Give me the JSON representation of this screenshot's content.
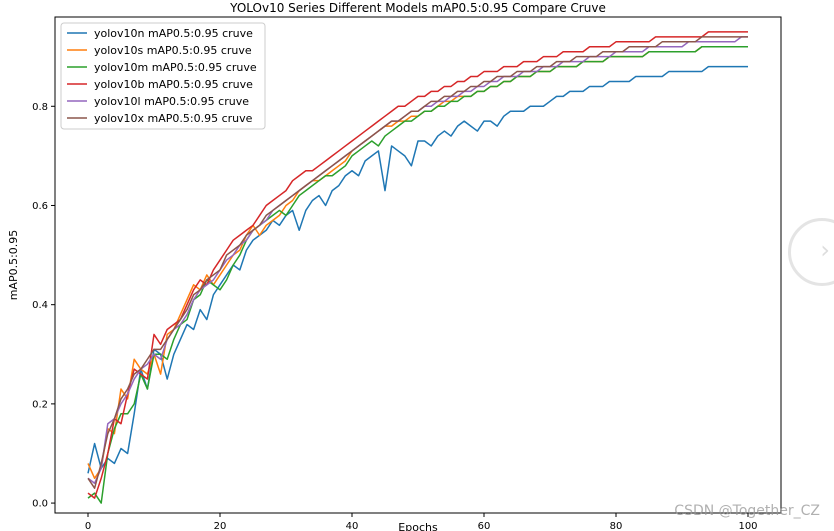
{
  "chart_data": {
    "type": "line",
    "title": "YOLOv10 Series Different Models mAP0.5:0.95 Compare Cruve",
    "xlabel": "Epochs",
    "ylabel": "mAP0.5:0.95",
    "xlim": [
      -5,
      105
    ],
    "ylim": [
      -0.02,
      0.98
    ],
    "xticks": [
      0,
      20,
      40,
      60,
      80,
      100
    ],
    "yticks": [
      0.0,
      0.2,
      0.4,
      0.6,
      0.8
    ],
    "xtick_labels": [
      "0",
      "20",
      "40",
      "60",
      "80",
      "100"
    ],
    "ytick_labels": [
      "0.0",
      "0.2",
      "0.4",
      "0.6",
      "0.8"
    ],
    "legend_position": "upper-left",
    "series": [
      {
        "name": "yolov10n mAP0.5:0.95 cruve",
        "color": "#1f77b4",
        "values": [
          0.06,
          0.12,
          0.07,
          0.09,
          0.08,
          0.11,
          0.1,
          0.18,
          0.27,
          0.23,
          0.31,
          0.3,
          0.25,
          0.3,
          0.33,
          0.36,
          0.35,
          0.39,
          0.37,
          0.42,
          0.44,
          0.46,
          0.48,
          0.47,
          0.51,
          0.53,
          0.54,
          0.55,
          0.57,
          0.56,
          0.58,
          0.59,
          0.55,
          0.59,
          0.61,
          0.62,
          0.6,
          0.63,
          0.64,
          0.66,
          0.67,
          0.66,
          0.69,
          0.7,
          0.71,
          0.63,
          0.72,
          0.71,
          0.7,
          0.68,
          0.73,
          0.73,
          0.72,
          0.74,
          0.75,
          0.74,
          0.76,
          0.77,
          0.76,
          0.75,
          0.77,
          0.77,
          0.76,
          0.78,
          0.79,
          0.79,
          0.79,
          0.8,
          0.8,
          0.8,
          0.81,
          0.82,
          0.82,
          0.83,
          0.83,
          0.83,
          0.84,
          0.84,
          0.84,
          0.85,
          0.85,
          0.85,
          0.85,
          0.86,
          0.86,
          0.86,
          0.86,
          0.86,
          0.87,
          0.87,
          0.87,
          0.87,
          0.87,
          0.87,
          0.88,
          0.88,
          0.88,
          0.88,
          0.88,
          0.88,
          0.88
        ]
      },
      {
        "name": "yolov10s mAP0.5:0.95 cruve",
        "color": "#ff7f0e",
        "values": [
          0.08,
          0.05,
          0.07,
          0.15,
          0.14,
          0.23,
          0.21,
          0.29,
          0.27,
          0.26,
          0.3,
          0.26,
          0.34,
          0.35,
          0.38,
          0.41,
          0.44,
          0.43,
          0.46,
          0.44,
          0.46,
          0.48,
          0.5,
          0.51,
          0.54,
          0.56,
          0.54,
          0.56,
          0.57,
          0.58,
          0.6,
          0.61,
          0.63,
          0.64,
          0.65,
          0.65,
          0.66,
          0.67,
          0.68,
          0.69,
          0.71,
          0.72,
          0.73,
          0.74,
          0.75,
          0.76,
          0.76,
          0.77,
          0.77,
          0.78,
          0.78,
          0.79,
          0.79,
          0.8,
          0.81,
          0.81,
          0.82,
          0.82,
          0.82,
          0.83,
          0.83,
          0.84,
          0.84,
          0.85,
          0.85,
          0.86,
          0.86,
          0.86,
          0.87,
          0.87,
          0.87,
          0.88,
          0.88,
          0.88,
          0.88,
          0.89,
          0.89,
          0.89,
          0.89,
          0.9,
          0.9,
          0.9,
          0.9,
          0.9,
          0.9,
          0.91,
          0.91,
          0.91,
          0.91,
          0.91,
          0.91,
          0.91,
          0.91,
          0.92,
          0.92,
          0.92,
          0.92,
          0.92,
          0.92,
          0.92,
          0.92
        ]
      },
      {
        "name": "yolov10m mAP0.5:0.95 cruve",
        "color": "#2ca02c",
        "values": [
          0.01,
          0.02,
          0.0,
          0.1,
          0.15,
          0.18,
          0.18,
          0.2,
          0.26,
          0.23,
          0.3,
          0.3,
          0.29,
          0.33,
          0.36,
          0.37,
          0.41,
          0.42,
          0.45,
          0.44,
          0.43,
          0.45,
          0.48,
          0.5,
          0.53,
          0.55,
          0.56,
          0.57,
          0.58,
          0.59,
          0.58,
          0.6,
          0.62,
          0.63,
          0.64,
          0.65,
          0.66,
          0.66,
          0.67,
          0.68,
          0.7,
          0.71,
          0.72,
          0.73,
          0.72,
          0.74,
          0.75,
          0.76,
          0.77,
          0.77,
          0.78,
          0.79,
          0.79,
          0.8,
          0.8,
          0.81,
          0.81,
          0.82,
          0.82,
          0.83,
          0.83,
          0.84,
          0.84,
          0.85,
          0.85,
          0.86,
          0.86,
          0.86,
          0.87,
          0.87,
          0.87,
          0.88,
          0.88,
          0.88,
          0.88,
          0.89,
          0.89,
          0.89,
          0.89,
          0.9,
          0.9,
          0.9,
          0.9,
          0.9,
          0.9,
          0.91,
          0.91,
          0.91,
          0.91,
          0.91,
          0.91,
          0.91,
          0.91,
          0.92,
          0.92,
          0.92,
          0.92,
          0.92,
          0.92,
          0.92,
          0.92
        ]
      },
      {
        "name": "yolov10b mAP0.5:0.95 cruve",
        "color": "#d62728",
        "values": [
          0.02,
          0.01,
          0.05,
          0.1,
          0.17,
          0.16,
          0.22,
          0.27,
          0.26,
          0.25,
          0.34,
          0.32,
          0.35,
          0.36,
          0.37,
          0.4,
          0.43,
          0.45,
          0.44,
          0.47,
          0.49,
          0.51,
          0.53,
          0.54,
          0.55,
          0.56,
          0.58,
          0.6,
          0.61,
          0.62,
          0.63,
          0.65,
          0.66,
          0.67,
          0.67,
          0.68,
          0.69,
          0.7,
          0.71,
          0.72,
          0.73,
          0.74,
          0.75,
          0.76,
          0.77,
          0.78,
          0.79,
          0.8,
          0.8,
          0.81,
          0.82,
          0.82,
          0.83,
          0.83,
          0.84,
          0.84,
          0.85,
          0.85,
          0.86,
          0.86,
          0.87,
          0.87,
          0.87,
          0.88,
          0.88,
          0.88,
          0.89,
          0.89,
          0.89,
          0.9,
          0.9,
          0.9,
          0.91,
          0.91,
          0.91,
          0.91,
          0.92,
          0.92,
          0.92,
          0.92,
          0.93,
          0.93,
          0.93,
          0.93,
          0.93,
          0.93,
          0.94,
          0.94,
          0.94,
          0.94,
          0.94,
          0.94,
          0.94,
          0.94,
          0.95,
          0.95,
          0.95,
          0.95,
          0.95,
          0.95,
          0.95
        ]
      },
      {
        "name": "yolov10l mAP0.5:0.95 cruve",
        "color": "#9467bd",
        "values": [
          0.05,
          0.04,
          0.07,
          0.16,
          0.17,
          0.2,
          0.22,
          0.25,
          0.27,
          0.28,
          0.3,
          0.29,
          0.33,
          0.35,
          0.36,
          0.38,
          0.41,
          0.43,
          0.44,
          0.45,
          0.47,
          0.49,
          0.5,
          0.52,
          0.53,
          0.55,
          0.56,
          0.57,
          0.59,
          0.6,
          0.61,
          0.62,
          0.63,
          0.64,
          0.65,
          0.66,
          0.67,
          0.68,
          0.69,
          0.7,
          0.71,
          0.72,
          0.73,
          0.74,
          0.75,
          0.76,
          0.77,
          0.77,
          0.78,
          0.79,
          0.79,
          0.8,
          0.8,
          0.81,
          0.81,
          0.82,
          0.82,
          0.83,
          0.83,
          0.84,
          0.84,
          0.85,
          0.85,
          0.86,
          0.86,
          0.86,
          0.87,
          0.87,
          0.87,
          0.88,
          0.88,
          0.88,
          0.89,
          0.89,
          0.89,
          0.89,
          0.9,
          0.9,
          0.9,
          0.9,
          0.91,
          0.91,
          0.91,
          0.91,
          0.91,
          0.92,
          0.92,
          0.92,
          0.92,
          0.92,
          0.92,
          0.93,
          0.93,
          0.93,
          0.93,
          0.93,
          0.93,
          0.93,
          0.93,
          0.94,
          0.94
        ]
      },
      {
        "name": "yolov10x mAP0.5:0.95 cruve",
        "color": "#8c564b",
        "values": [
          0.05,
          0.03,
          0.08,
          0.14,
          0.17,
          0.21,
          0.23,
          0.26,
          0.27,
          0.29,
          0.31,
          0.31,
          0.33,
          0.35,
          0.37,
          0.39,
          0.42,
          0.43,
          0.45,
          0.46,
          0.47,
          0.5,
          0.51,
          0.52,
          0.54,
          0.55,
          0.56,
          0.58,
          0.59,
          0.6,
          0.61,
          0.62,
          0.63,
          0.64,
          0.65,
          0.66,
          0.67,
          0.68,
          0.69,
          0.7,
          0.71,
          0.72,
          0.73,
          0.74,
          0.75,
          0.76,
          0.77,
          0.77,
          0.78,
          0.79,
          0.79,
          0.8,
          0.81,
          0.81,
          0.82,
          0.82,
          0.83,
          0.83,
          0.84,
          0.84,
          0.85,
          0.85,
          0.86,
          0.86,
          0.86,
          0.87,
          0.87,
          0.87,
          0.88,
          0.88,
          0.88,
          0.89,
          0.89,
          0.89,
          0.9,
          0.9,
          0.9,
          0.9,
          0.91,
          0.91,
          0.91,
          0.91,
          0.92,
          0.92,
          0.92,
          0.92,
          0.92,
          0.93,
          0.93,
          0.93,
          0.93,
          0.93,
          0.93,
          0.94,
          0.94,
          0.94,
          0.94,
          0.94,
          0.94,
          0.94,
          0.94
        ]
      }
    ]
  },
  "watermark": {
    "text": "CSDN @Together_CZ"
  }
}
